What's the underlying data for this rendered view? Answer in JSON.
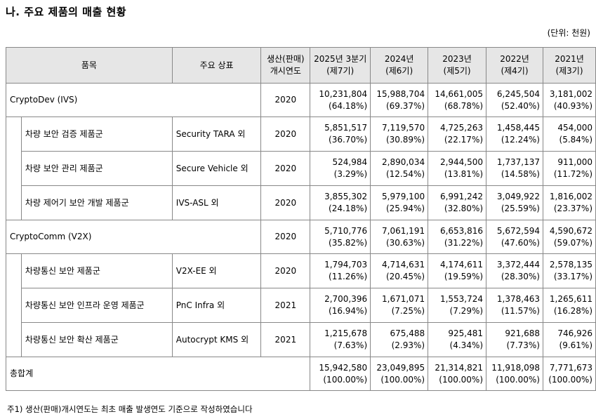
{
  "title": "나. 주요 제품의 매출 현황",
  "unit": "(단위: 천원)",
  "headers": {
    "item": "품목",
    "brand": "주요 상표",
    "start_year_1": "생산(판매)",
    "start_year_2": "개시연도",
    "periods": [
      {
        "l1": "2025년 3분기",
        "l2": "(제7기)"
      },
      {
        "l1": "2024년",
        "l2": "(제6기)"
      },
      {
        "l1": "2023년",
        "l2": "(제5기)"
      },
      {
        "l1": "2022년",
        "l2": "(제4기)"
      },
      {
        "l1": "2021년",
        "l2": "(제3기)"
      }
    ]
  },
  "rows": [
    {
      "name": "CryptoDev (IVS)",
      "brand": "",
      "year": "2020",
      "group": true,
      "cells": [
        [
          "10,231,804",
          "(64.18%)"
        ],
        [
          "15,988,704",
          "(69.37%)"
        ],
        [
          "14,661,005",
          "(68.78%)"
        ],
        [
          "6,245,504",
          "(52.40%)"
        ],
        [
          "3,181,002",
          "(40.93%)"
        ]
      ]
    },
    {
      "name": "차량 보안 검증 제품군",
      "brand": "Security TARA 외",
      "year": "2020",
      "group": false,
      "cells": [
        [
          "5,851,517",
          "(36.70%)"
        ],
        [
          "7,119,570",
          "(30.89%)"
        ],
        [
          "4,725,263",
          "(22.17%)"
        ],
        [
          "1,458,445",
          "(12.24%)"
        ],
        [
          "454,000",
          "(5.84%)"
        ]
      ]
    },
    {
      "name": "차량 보안 관리 제품군",
      "brand": "Secure Vehicle 외",
      "year": "2020",
      "group": false,
      "cells": [
        [
          "524,984",
          "(3.29%)"
        ],
        [
          "2,890,034",
          "(12.54%)"
        ],
        [
          "2,944,500",
          "(13.81%)"
        ],
        [
          "1,737,137",
          "(14.58%)"
        ],
        [
          "911,000",
          "(11.72%)"
        ]
      ]
    },
    {
      "name": "차량 제어기 보안 개발 제품군",
      "brand": "IVS-ASL 외",
      "year": "2020",
      "group": false,
      "cells": [
        [
          "3,855,302",
          "(24.18%)"
        ],
        [
          "5,979,100",
          "(25.94%)"
        ],
        [
          "6,991,242",
          "(32.80%)"
        ],
        [
          "3,049,922",
          "(25.59%)"
        ],
        [
          "1,816,002",
          "(23.37%)"
        ]
      ]
    },
    {
      "name": "CryptoComm (V2X)",
      "brand": "",
      "year": "2020",
      "group": true,
      "cells": [
        [
          "5,710,776",
          "(35.82%)"
        ],
        [
          "7,061,191",
          "(30.63%)"
        ],
        [
          "6,653,816",
          "(31.22%)"
        ],
        [
          "5,672,594",
          "(47.60%)"
        ],
        [
          "4,590,672",
          "(59.07%)"
        ]
      ]
    },
    {
      "name": "차량통신 보안 제품군",
      "brand": "V2X-EE 외",
      "year": "2020",
      "group": false,
      "cells": [
        [
          "1,794,703",
          "(11.26%)"
        ],
        [
          "4,714,631",
          "(20.45%)"
        ],
        [
          "4,174,611",
          "(19.59%)"
        ],
        [
          "3,372,444",
          "(28.30%)"
        ],
        [
          "2,578,135",
          "(33.17%)"
        ]
      ]
    },
    {
      "name": "차량통신 보안 인프라 운영 제품군",
      "brand": "PnC Infra 외",
      "year": "2021",
      "group": false,
      "cells": [
        [
          "2,700,396",
          "(16.94%)"
        ],
        [
          "1,671,071",
          "(7.25%)"
        ],
        [
          "1,553,724",
          "(7.29%)"
        ],
        [
          "1,378,463",
          "(11.57%)"
        ],
        [
          "1,265,611",
          "(16.28%)"
        ]
      ]
    },
    {
      "name": "차량통신 보안 확산 제품군",
      "brand": "Autocrypt KMS 외",
      "year": "2021",
      "group": false,
      "cells": [
        [
          "1,215,678",
          "(7.63%)"
        ],
        [
          "675,488",
          "(2.93%)"
        ],
        [
          "925,481",
          "(4.34%)"
        ],
        [
          "921,688",
          "(7.73%)"
        ],
        [
          "746,926",
          "(9.61%)"
        ]
      ]
    }
  ],
  "total": {
    "name": "총합계",
    "cells": [
      [
        "15,942,580",
        "(100.00%)"
      ],
      [
        "23,049,895",
        "(100.00%)"
      ],
      [
        "21,314,821",
        "(100.00%)"
      ],
      [
        "11,918,098",
        "(100.00%)"
      ],
      [
        "7,771,673",
        "(100.00%)"
      ]
    ]
  },
  "footnote": "주1)   생산(판매)개시연도는 최초 매출 발생연도 기준으로 작성하였습니다"
}
